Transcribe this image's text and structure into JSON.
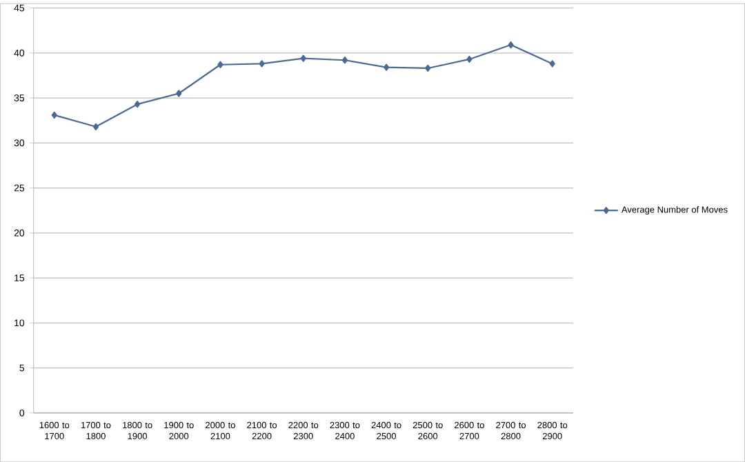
{
  "chart_data": {
    "type": "line",
    "categories": [
      "1600 to 1700",
      "1700 to 1800",
      "1800 to 1900",
      "1900 to 2000",
      "2000 to 2100",
      "2100 to 2200",
      "2200 to 2300",
      "2300 to 2400",
      "2400 to 2500",
      "2500 to 2600",
      "2600 to 2700",
      "2700 to 2800",
      "2800 to 2900"
    ],
    "series": [
      {
        "name": "Average Number of Moves",
        "color": "#4a6a94",
        "values": [
          33.1,
          31.8,
          34.3,
          35.5,
          38.7,
          38.8,
          39.4,
          39.2,
          38.4,
          38.3,
          39.3,
          40.9,
          38.8
        ]
      }
    ],
    "ylim": [
      0,
      45
    ],
    "yticks": [
      0,
      5,
      10,
      15,
      20,
      25,
      30,
      35,
      40,
      45
    ],
    "grid": "y",
    "legend": "right",
    "marker": "diamond",
    "line_style": "solid"
  }
}
